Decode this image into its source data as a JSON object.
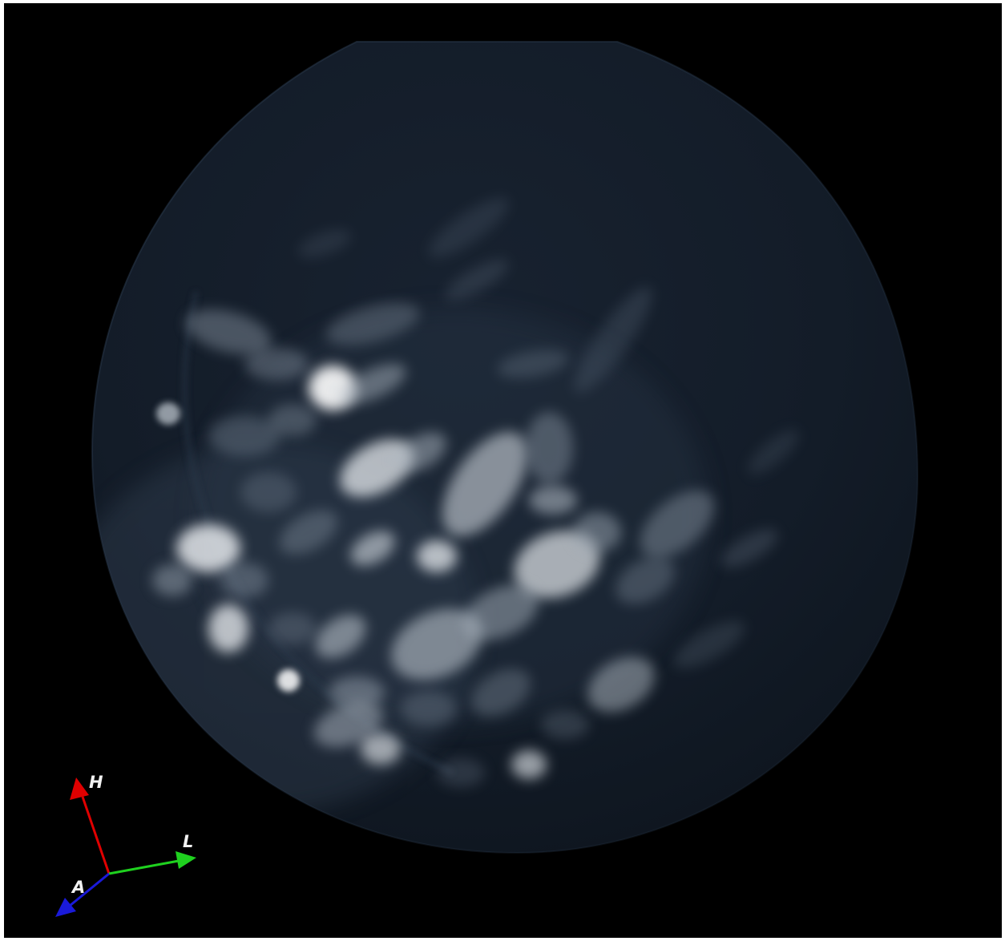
{
  "viewer": {
    "background_color": "#000000",
    "volume_tint": "#1a2533",
    "highlight_color": "#ffffff"
  },
  "orientation_marker": {
    "axes": [
      {
        "label": "H",
        "color": "#e00000",
        "icon": "arrow-up-icon"
      },
      {
        "label": "L",
        "color": "#1fd11f",
        "icon": "arrow-right-icon"
      },
      {
        "label": "A",
        "color": "#1a1ad9",
        "icon": "arrow-down-left-icon"
      }
    ]
  }
}
